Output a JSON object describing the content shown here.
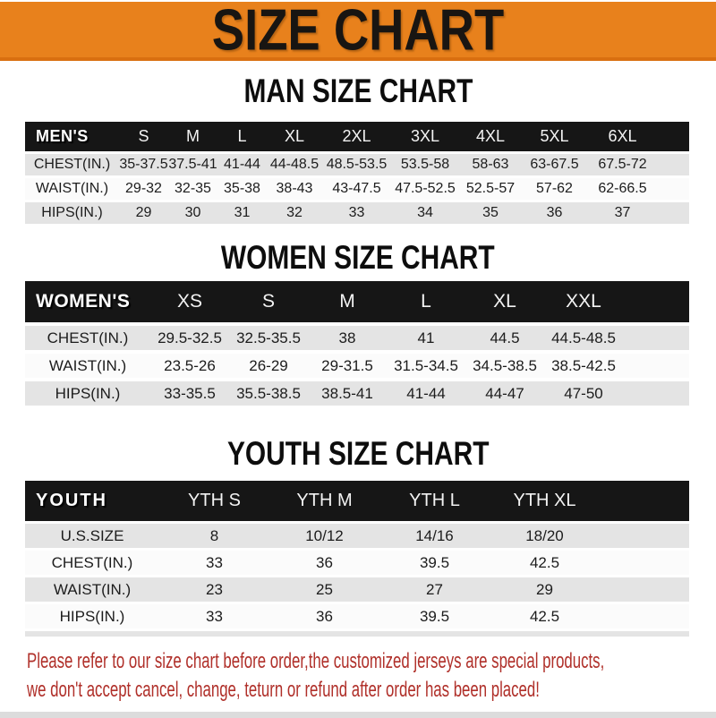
{
  "banner": {
    "title": "SIZE CHART"
  },
  "colors": {
    "banner_orange": "#E8811C",
    "banner_orange_dark": "#D96F10",
    "header_bar_black": "#161616",
    "row_gray": "#E4E4E4",
    "row_white": "#FBFBFB",
    "note_red": "#B0302A"
  },
  "sections": {
    "men": {
      "heading": "MAN SIZE CHART",
      "table": {
        "header_label": "MEN'S",
        "columns": [
          "S",
          "M",
          "L",
          "XL",
          "2XL",
          "3XL",
          "4XL",
          "5XL",
          "6XL"
        ],
        "rows": [
          {
            "label": "CHEST(IN.)",
            "values": [
              "35-37.5",
              "37.5-41",
              "41-44",
              "44-48.5",
              "48.5-53.5",
              "53.5-58",
              "58-63",
              "63-67.5",
              "67.5-72"
            ]
          },
          {
            "label": "WAIST(IN.)",
            "values": [
              "29-32",
              "32-35",
              "35-38",
              "38-43",
              "43-47.5",
              "47.5-52.5",
              "52.5-57",
              "57-62",
              "62-66.5"
            ]
          },
          {
            "label": "HIPS(IN.)",
            "values": [
              "29",
              "30",
              "31",
              "32",
              "33",
              "34",
              "35",
              "36",
              "37"
            ]
          }
        ]
      }
    },
    "women": {
      "heading": "WOMEN SIZE CHART",
      "table": {
        "header_label": "WOMEN'S",
        "columns": [
          "XS",
          "S",
          "M",
          "L",
          "XL",
          "XXL"
        ],
        "rows": [
          {
            "label": "CHEST(IN.)",
            "values": [
              "29.5-32.5",
              "32.5-35.5",
              "38",
              "41",
              "44.5",
              "44.5-48.5"
            ]
          },
          {
            "label": "WAIST(IN.)",
            "values": [
              "23.5-26",
              "26-29",
              "29-31.5",
              "31.5-34.5",
              "34.5-38.5",
              "38.5-42.5"
            ]
          },
          {
            "label": "HIPS(IN.)",
            "values": [
              "33-35.5",
              "35.5-38.5",
              "38.5-41",
              "41-44",
              "44-47",
              "47-50"
            ]
          }
        ]
      }
    },
    "youth": {
      "heading": "YOUTH SIZE CHART",
      "table": {
        "header_label": "YOUTH",
        "columns": [
          "YTH S",
          "YTH M",
          "YTH L",
          "YTH XL"
        ],
        "rows": [
          {
            "label": "U.S.SIZE",
            "values": [
              "8",
              "10/12",
              "14/16",
              "18/20"
            ]
          },
          {
            "label": "CHEST(IN.)",
            "values": [
              "33",
              "36",
              "39.5",
              "42.5"
            ]
          },
          {
            "label": "WAIST(IN.)",
            "values": [
              "23",
              "25",
              "27",
              "29"
            ]
          },
          {
            "label": "HIPS(IN.)",
            "values": [
              "33",
              "36",
              "39.5",
              "42.5"
            ]
          }
        ]
      }
    }
  },
  "note": {
    "line1": "Please refer to our size chart before order,the customized jerseys are special products,",
    "line2": "we don't accept cancel, change, teturn or refund after order has been placed!"
  }
}
